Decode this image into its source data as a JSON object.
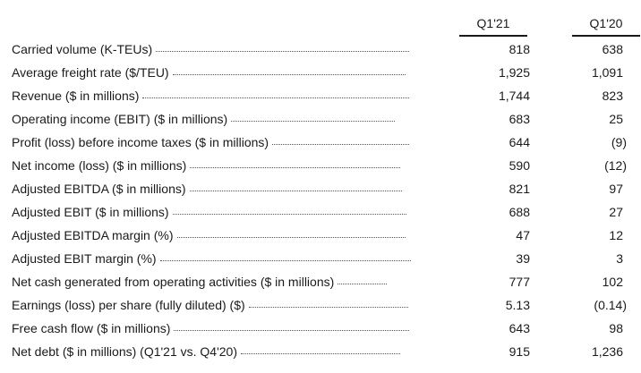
{
  "header": {
    "col1": "Q1'21",
    "col2": "Q1'20"
  },
  "rows": [
    {
      "label": "Carried volume (K-TEUs)",
      "q1_21": "818",
      "q1_20": "638"
    },
    {
      "label": "Average freight rate ($/TEU)",
      "q1_21": "1,925",
      "q1_20": "1,091"
    },
    {
      "label": "Revenue ($ in millions)",
      "q1_21": "1,744",
      "q1_20": "823"
    },
    {
      "label": "Operating income (EBIT) ($ in millions)",
      "q1_21": "683",
      "q1_20": "25"
    },
    {
      "label": "Profit (loss) before income taxes ($ in millions)",
      "q1_21": "644",
      "q1_20": "(9)"
    },
    {
      "label": "Net income (loss) ($ in millions)",
      "q1_21": "590",
      "q1_20": "(12)"
    },
    {
      "label": "Adjusted EBITDA ($ in millions)",
      "q1_21": "821",
      "q1_20": "97"
    },
    {
      "label": "Adjusted EBIT ($ in millions)",
      "q1_21": "688",
      "q1_20": "27"
    },
    {
      "label": "Adjusted EBITDA margin (%)",
      "q1_21": "47",
      "q1_20": "12"
    },
    {
      "label": "Adjusted EBIT margin (%)",
      "q1_21": "39",
      "q1_20": "3"
    },
    {
      "label": "Net cash generated from operating activities ($ in millions)",
      "q1_21": "777",
      "q1_20": "102"
    },
    {
      "label": "Earnings (loss) per share (fully diluted) ($)",
      "q1_21": "5.13",
      "q1_20": "(0.14)"
    },
    {
      "label": "Free cash flow ($ in millions)",
      "q1_21": "643",
      "q1_20": "98"
    },
    {
      "label": "Net debt ($ in millions) (Q1'21 vs. Q4'20)",
      "q1_21": "915",
      "q1_20": "1,236"
    }
  ]
}
